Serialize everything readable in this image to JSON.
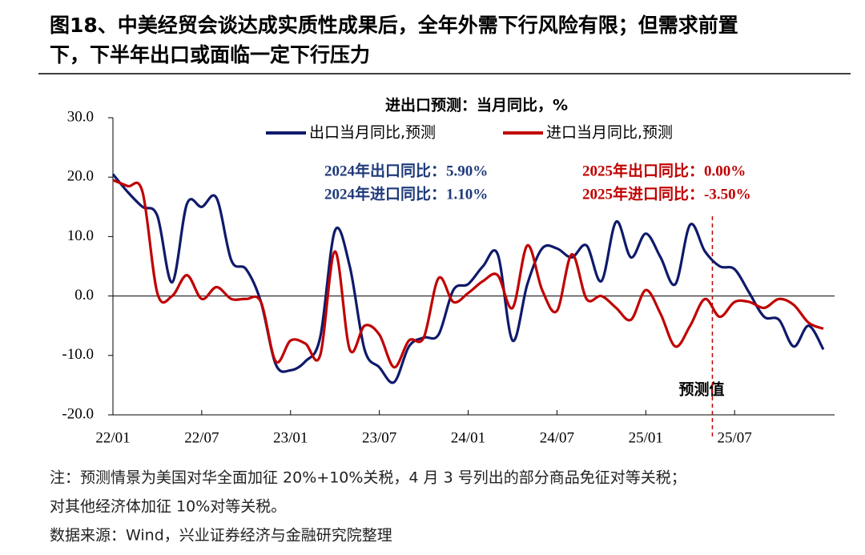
{
  "title_lines": [
    "图18、中美经贸会谈达成实质性成果后，全年外需下行风险有限；但需求前置",
    "下，下半年出口或面临一定下行压力"
  ],
  "chart_data": {
    "type": "line",
    "title": "进出口预测：当月同比，%",
    "categories": [
      "22/01",
      null,
      null,
      null,
      null,
      null,
      "22/07",
      null,
      null,
      null,
      null,
      null,
      "23/01",
      null,
      null,
      null,
      null,
      null,
      "23/07",
      null,
      null,
      null,
      null,
      null,
      "24/01",
      null,
      null,
      null,
      null,
      null,
      "24/07",
      null,
      null,
      null,
      null,
      null,
      "25/01",
      null,
      null,
      null,
      null,
      null,
      "25/07",
      null,
      null,
      null,
      null,
      null,
      null
    ],
    "series": [
      {
        "name": "出口当月同比,预测",
        "color": "#0f1a6b",
        "values": [
          20.5,
          17.5,
          15,
          13.5,
          2.3,
          15.5,
          15,
          16.5,
          6,
          4.5,
          -1,
          -11.5,
          -12.5,
          -11,
          -7,
          11,
          5,
          -9,
          -12,
          -14.5,
          -8.5,
          -7,
          -6.5,
          1,
          2,
          5,
          7,
          -7.5,
          2,
          8,
          8,
          6.5,
          8.5,
          2.5,
          12.5,
          6.5,
          10.5,
          6.5,
          2,
          12,
          7.5,
          5,
          4.5,
          0.5,
          -3.5,
          -4,
          -8.5,
          -5,
          -9
        ]
      },
      {
        "name": "进口当月同比,预测",
        "color": "#c00000",
        "values": [
          19.5,
          18.5,
          17.5,
          0.5,
          0,
          3.5,
          -0.5,
          1.5,
          -0.5,
          -0.5,
          -1,
          -11,
          -7.5,
          -8,
          -10,
          7.5,
          -9,
          -5,
          -6.5,
          -12,
          -7.5,
          -7,
          3,
          -1,
          0.5,
          2.5,
          3.5,
          -2,
          8.5,
          1,
          -2.5,
          7,
          -0.5,
          0,
          -2,
          -4,
          1,
          -3,
          -8.5,
          -5,
          -0.5,
          -3.5,
          -1,
          -1,
          -2,
          -0.5,
          -1.5,
          -4.5,
          -5.5
        ]
      }
    ],
    "ylim": [
      -20,
      30
    ],
    "yticks": [
      {
        "value": -20,
        "label": "-20.0"
      },
      {
        "value": -10,
        "label": "-10.0"
      },
      {
        "value": 0,
        "label": "0.0"
      },
      {
        "value": 10,
        "label": "10.0"
      },
      {
        "value": 20,
        "label": "20.0"
      },
      {
        "value": 30,
        "label": "30.0"
      }
    ],
    "annotations": [
      "2024年出口同比：5.90%",
      "2024年进口同比：1.10%",
      "2025年出口同比：0.00%",
      "2025年进口同比：-3.50%",
      "预测值"
    ]
  },
  "notes": [
    "注：预测情景为美国对华全面加征 20%+10%关税，4 月 3 号列出的部分商品免征对等关税；",
    "对其他经济体加征 10%对等关税。",
    "数据来源：Wind，兴业证券经济与金融研究院整理"
  ]
}
